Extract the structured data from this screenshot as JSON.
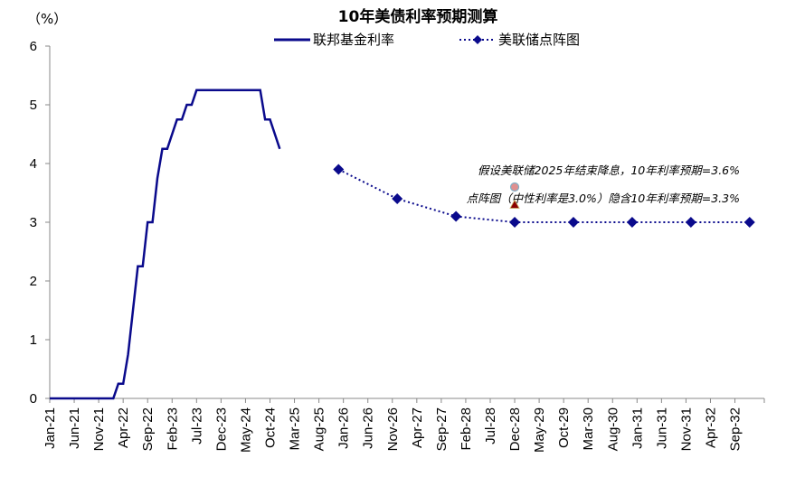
{
  "chart_data": {
    "type": "line",
    "title": "10年美债利率预期测算",
    "ylabel": "（%）",
    "ylim": [
      0,
      6
    ],
    "yticks": [
      "0",
      "1",
      "2",
      "3",
      "4",
      "5",
      "6"
    ],
    "xticks": [
      "Jan-21",
      "Jun-21",
      "Nov-21",
      "Apr-22",
      "Sep-22",
      "Feb-23",
      "Jul-23",
      "Dec-23",
      "May-24",
      "Oct-24",
      "Mar-25",
      "Aug-25",
      "Jan-26",
      "Jun-26",
      "Nov-26",
      "Apr-27",
      "Sep-27",
      "Feb-28",
      "Jul-28",
      "Dec-28",
      "May-29",
      "Oct-29",
      "Mar-30",
      "Aug-30",
      "Jan-31",
      "Jun-31",
      "Nov-31",
      "Apr-32",
      "Sep-32"
    ],
    "grid": false,
    "legend_position": "top",
    "series": [
      {
        "name": "联邦基金利率",
        "style": "solid",
        "color": "#0a0a8c",
        "start": "Jan-21",
        "monthly_values": [
          0,
          0,
          0,
          0,
          0,
          0,
          0,
          0,
          0,
          0,
          0,
          0,
          0,
          0,
          0.25,
          0.25,
          0.75,
          1.5,
          2.25,
          2.25,
          3.0,
          3.0,
          3.75,
          4.25,
          4.25,
          4.5,
          4.75,
          4.75,
          5.0,
          5.0,
          5.25,
          5.25,
          5.25,
          5.25,
          5.25,
          5.25,
          5.25,
          5.25,
          5.25,
          5.25,
          5.25,
          5.25,
          5.25,
          5.25,
          4.75,
          4.75,
          4.5,
          4.25
        ]
      },
      {
        "name": "美联储点阵图",
        "style": "dotted-diamond",
        "color": "#0a0a8c",
        "x": [
          "Dec-25",
          "Dec-26",
          "Dec-27",
          "Dec-28",
          "Dec-29",
          "Dec-30",
          "Dec-31",
          "Dec-32"
        ],
        "y": [
          3.9,
          3.4,
          3.1,
          3.0,
          3.0,
          3.0,
          3.0,
          3.0
        ]
      }
    ],
    "annotations": [
      {
        "text": "假设美联储2025年结束降息，10年利率预期=3.6%",
        "x": "Dec-28",
        "y": 3.6,
        "marker": "circle",
        "color": "#e09090"
      },
      {
        "text": "点阵图（中性利率是3.0%）隐含10年利率预期=3.3%",
        "x": "Dec-28",
        "y": 3.3,
        "marker": "triangle",
        "color": "#8b0000"
      }
    ]
  }
}
